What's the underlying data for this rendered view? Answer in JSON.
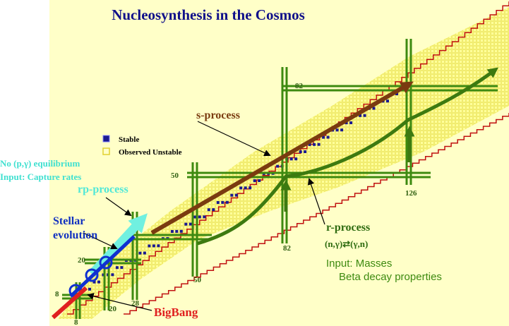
{
  "title": "Nucleosynthesis in the Cosmos",
  "legend": [
    "Stable",
    "Observed Unstable"
  ],
  "rp_note": [
    "No (p,γ) equilibrium",
    "Input: Capture rates"
  ],
  "processes": {
    "rp": "rp-process",
    "s": "s-process",
    "r": "r-process",
    "bigbang": "BigBang"
  },
  "stellar": [
    "Stellar",
    "evolution"
  ],
  "r_note": [
    "(n,γ)⇄(γ,n)",
    "Input: Masses",
    "Beta decay properties"
  ],
  "magic_numbers": [
    "82",
    "50",
    "126",
    "82",
    "50",
    "28",
    "20",
    "8",
    "20",
    "8"
  ]
}
